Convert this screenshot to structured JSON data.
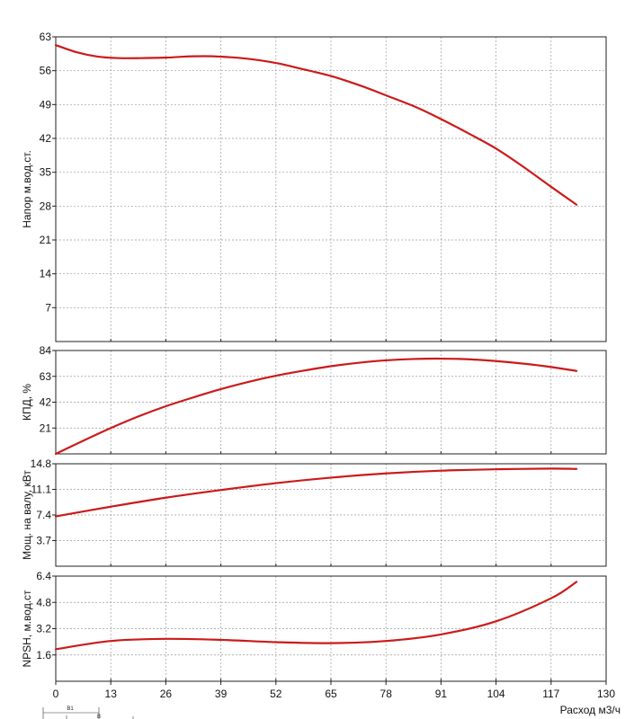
{
  "chart_data": {
    "type": "line",
    "x_ticks": [
      0,
      13,
      26,
      39,
      52,
      65,
      78,
      91,
      104,
      117,
      130
    ],
    "xlim": [
      0,
      130
    ],
    "xlabel": "Расход м3/ч",
    "grid": true,
    "line_color": "#cc1a1a",
    "panels": [
      {
        "id": "head",
        "ylabel": "Напор м.вод.ст.",
        "ylim": [
          0,
          63
        ],
        "y_ticks": [
          7,
          14,
          21,
          28,
          35,
          42,
          49,
          56,
          63
        ],
        "series": [
          {
            "x": [
              0,
              5,
              10,
              15,
              20,
              26,
              30,
              35,
              39,
              45,
              52,
              58,
              65,
              72,
              78,
              85,
              91,
              98,
              104,
              110,
              117,
              123
            ],
            "y": [
              61.3,
              59.8,
              58.9,
              58.6,
              58.6,
              58.7,
              58.9,
              59.0,
              58.9,
              58.5,
              57.6,
              56.4,
              54.9,
              52.9,
              50.9,
              48.5,
              46.0,
              42.8,
              39.9,
              36.4,
              32.0,
              28.3
            ]
          }
        ]
      },
      {
        "id": "efficiency",
        "ylabel": "КПД, %",
        "ylim": [
          0,
          84
        ],
        "y_ticks": [
          21,
          42,
          63,
          84
        ],
        "series": [
          {
            "x": [
              0,
              6.5,
              13,
              19.5,
              26,
              32.5,
              39,
              45.5,
              52,
              58.5,
              65,
              71.5,
              78,
              84.5,
              91,
              97.5,
              104,
              110.5,
              117,
              123
            ],
            "y": [
              0,
              10.7,
              21.0,
              30.4,
              38.7,
              45.9,
              52.6,
              58.5,
              63.5,
              67.6,
              71.2,
              74.0,
              76.0,
              77.1,
              77.4,
              76.9,
              75.4,
              73.3,
              70.6,
              67.4
            ]
          }
        ]
      },
      {
        "id": "power",
        "ylabel": "Мощ. на валу, кВт",
        "ylim": [
          0,
          14.8
        ],
        "y_ticks": [
          3.7,
          7.4,
          11.1,
          14.8
        ],
        "series": [
          {
            "x": [
              0,
              13,
              26,
              39,
              52,
              65,
              78,
              91,
              104,
              117,
              123
            ],
            "y": [
              7.2,
              8.6,
              9.9,
              11.0,
              12.0,
              12.8,
              13.4,
              13.8,
              14.0,
              14.1,
              14.05
            ]
          }
        ]
      },
      {
        "id": "npsh",
        "ylabel": "NPSH, м.вод.ст",
        "ylim": [
          0,
          6.4
        ],
        "y_ticks": [
          1.6,
          3.2,
          4.8,
          6.4
        ],
        "series": [
          {
            "x": [
              0,
              13,
              26,
              39,
              52,
              65,
              78,
              91,
              104,
              117,
              123
            ],
            "y": [
              1.95,
              2.45,
              2.58,
              2.52,
              2.38,
              2.32,
              2.45,
              2.85,
              3.65,
              5.05,
              6.05
            ]
          }
        ]
      }
    ]
  },
  "footer": {
    "dim_label_1": "B1",
    "dim_label_2": "B"
  }
}
